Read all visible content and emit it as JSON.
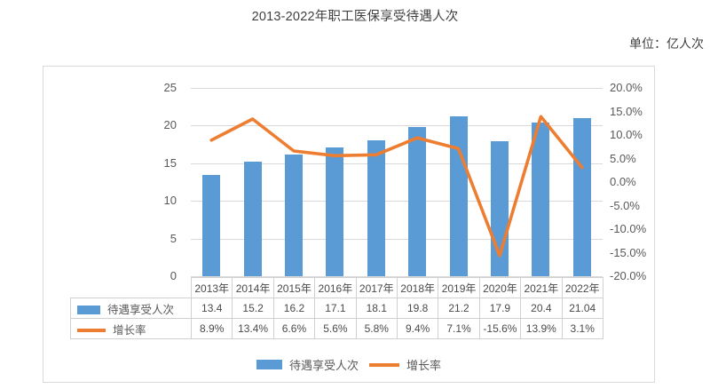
{
  "title": "2013-2022年职工医保享受待遇人次",
  "unit_label": "单位：亿人次",
  "colors": {
    "bar": "#5B9BD5",
    "line": "#ED7D31",
    "grid": "#D9D9D9",
    "frame_border": "#D9D9D9",
    "table_border": "#D0D0D0",
    "text": "#595959"
  },
  "chart_data": {
    "type": "bar",
    "subtype": "bar+line combo with data table",
    "title": "2013-2022年职工医保享受待遇人次",
    "categories": [
      "2013年",
      "2014年",
      "2015年",
      "2016年",
      "2017年",
      "2018年",
      "2019年",
      "2020年",
      "2021年",
      "2022年"
    ],
    "series": [
      {
        "name": "待遇享受人次",
        "type": "bar",
        "axis": "left",
        "values": [
          13.4,
          15.2,
          16.2,
          17.1,
          18.1,
          19.8,
          21.2,
          17.9,
          20.4,
          21.04
        ],
        "display": [
          "13.4",
          "15.2",
          "16.2",
          "17.1",
          "18.1",
          "19.8",
          "21.2",
          "17.9",
          "20.4",
          "21.04"
        ]
      },
      {
        "name": "增长率",
        "type": "line",
        "axis": "right",
        "values": [
          8.9,
          13.4,
          6.6,
          5.6,
          5.8,
          9.4,
          7.1,
          -15.6,
          13.9,
          3.1
        ],
        "display": [
          "8.9%",
          "13.4%",
          "6.6%",
          "5.6%",
          "5.8%",
          "9.4%",
          "7.1%",
          "-15.6%",
          "13.9%",
          "3.1%"
        ]
      }
    ],
    "left_axis": {
      "ticks": [
        "25",
        "20",
        "15",
        "10",
        "5",
        "0"
      ],
      "min": 0,
      "max": 25
    },
    "right_axis": {
      "ticks": [
        "20.0%",
        "15.0%",
        "10.0%",
        "5.0%",
        "0.0%",
        "-5.0%",
        "-10.0%",
        "-15.0%",
        "-20.0%"
      ],
      "min": -20,
      "max": 20
    },
    "grid": true,
    "legend_position": "bottom",
    "has_data_table": true
  },
  "legend": {
    "items": [
      {
        "label": "待遇享受人次",
        "swatch": "bar"
      },
      {
        "label": "增长率",
        "swatch": "line"
      }
    ]
  }
}
